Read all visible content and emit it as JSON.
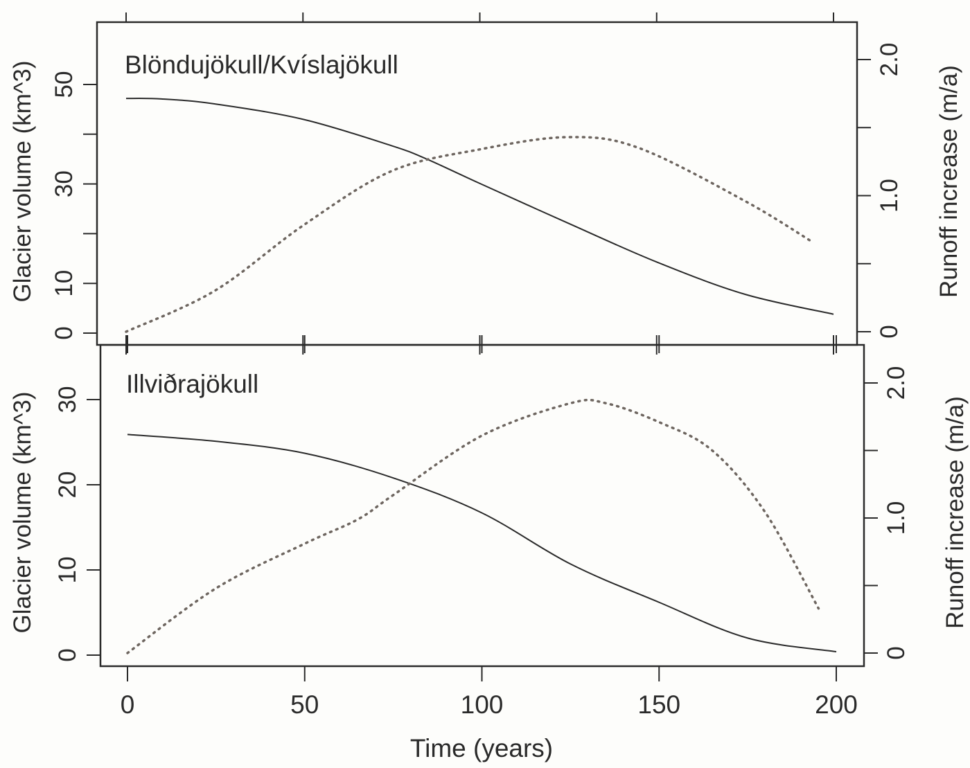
{
  "chart_data": [
    {
      "type": "line",
      "panel": "top",
      "title": "Blöndujökull/Kvíslajökull",
      "xlabel": "Time (years)",
      "ylabel": "Glacier volume (km^3)",
      "ylabel_right": "Runoff increase (m/a)",
      "xlim": [
        0,
        200
      ],
      "ylim": [
        0,
        60
      ],
      "ylim_right": [
        0,
        2.2
      ],
      "x_ticks": [
        0,
        50,
        100,
        150,
        200
      ],
      "y_ticks": [
        0,
        10,
        20,
        30,
        40,
        50
      ],
      "y_tick_labels": [
        "0",
        "10",
        "",
        "30",
        "",
        "50"
      ],
      "y_right_ticks": [
        0,
        0.5,
        1.0,
        1.5,
        2.0
      ],
      "y_right_tick_labels": [
        "0",
        "",
        "1.0",
        "",
        "2.0"
      ],
      "grid": false,
      "series": [
        {
          "name": "Glacier volume",
          "axis": "left",
          "style": "solid",
          "x": [
            0,
            10,
            25,
            50,
            75,
            85,
            100,
            125,
            150,
            175,
            200
          ],
          "values": [
            47.2,
            47.1,
            46.1,
            43.0,
            37.7,
            35.0,
            30.1,
            22.1,
            14.3,
            7.8,
            3.8
          ]
        },
        {
          "name": "Runoff increase",
          "axis": "right",
          "style": "dotted",
          "x": [
            0,
            25,
            50,
            75,
            100,
            125,
            145,
            175,
            194
          ],
          "values": [
            0,
            0.3,
            0.78,
            1.18,
            1.34,
            1.43,
            1.35,
            0.96,
            0.66
          ]
        }
      ]
    },
    {
      "type": "line",
      "panel": "bottom",
      "title": "Illviðrajökull",
      "xlabel": "Time (years)",
      "ylabel": "Glacier volume (km^3)",
      "ylabel_right": "Runoff increase (m/a)",
      "xlim": [
        0,
        200
      ],
      "ylim": [
        0,
        35
      ],
      "ylim_right": [
        0,
        2.2
      ],
      "x_ticks": [
        0,
        50,
        100,
        150,
        200
      ],
      "y_ticks": [
        0,
        10,
        20,
        30
      ],
      "y_tick_labels": [
        "0",
        "10",
        "20",
        "30"
      ],
      "y_right_ticks": [
        0,
        0.5,
        1.0,
        1.5,
        2.0
      ],
      "y_right_tick_labels": [
        "0",
        "",
        "1.0",
        "",
        "2.0"
      ],
      "grid": false,
      "series": [
        {
          "name": "Glacier volume",
          "axis": "left",
          "style": "solid",
          "x": [
            0,
            25,
            50,
            75,
            100,
            125,
            150,
            175,
            200
          ],
          "values": [
            25.9,
            25.1,
            23.7,
            20.8,
            16.7,
            10.7,
            6.2,
            2.0,
            0.4
          ]
        },
        {
          "name": "Runoff increase",
          "axis": "right",
          "style": "dotted",
          "x": [
            0,
            25,
            50,
            65,
            75,
            100,
            125,
            135,
            150,
            165,
            180,
            195
          ],
          "values": [
            0,
            0.48,
            0.81,
            0.99,
            1.17,
            1.61,
            1.85,
            1.85,
            1.71,
            1.5,
            1.04,
            0.33
          ]
        }
      ]
    }
  ],
  "labels": {
    "top_title": "Blöndujökull/Kvíslajökull",
    "bottom_title": "Illviðrajökull",
    "xlabel": "Time (years)",
    "ylabel_left": "Glacier volume (km^3)",
    "ylabel_right": "Runoff increase (m/a)"
  },
  "colors": {
    "axis": "#2a2a2a",
    "volume_line": "#2a2a2a",
    "runoff_line": "#6e6660"
  }
}
